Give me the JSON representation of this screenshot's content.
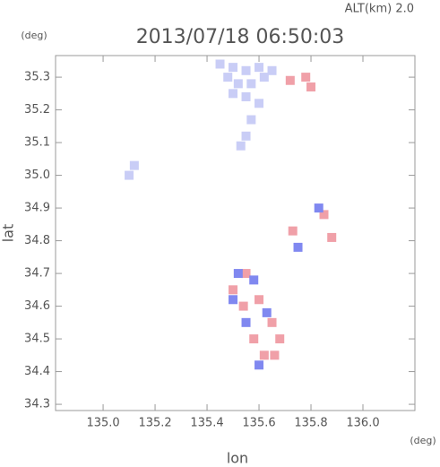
{
  "chart_data": {
    "type": "scatter",
    "title": "2013/07/18 06:50:03",
    "annotation": "ALT(km) 2.0",
    "y_unit": "(deg)",
    "x_unit": "(deg)",
    "xlabel": "lon",
    "ylabel": "lat",
    "xlim": [
      134.817,
      136.2
    ],
    "ylim": [
      34.281,
      35.366
    ],
    "xticks": [
      {
        "value": 135,
        "label": "135.0"
      },
      135.2,
      135.4,
      135.6,
      135.8,
      {
        "value": 136,
        "label": "136.0"
      }
    ],
    "yticks": [
      34.3,
      34.4,
      34.5,
      34.6,
      34.7,
      34.8,
      34.9,
      {
        "value": 35,
        "label": "35.0"
      },
      35.1,
      35.2,
      35.3
    ],
    "series": [
      {
        "color": "#c9cdf6",
        "x": [
          135.45,
          135.5,
          135.55,
          135.6,
          135.65,
          135.48,
          135.52,
          135.57,
          135.62,
          135.5,
          135.55,
          135.6,
          135.57,
          135.55,
          135.53,
          135.1,
          135.12
        ],
        "y": [
          35.34,
          35.33,
          35.32,
          35.33,
          35.32,
          35.3,
          35.28,
          35.28,
          35.3,
          35.25,
          35.24,
          35.22,
          35.17,
          35.12,
          35.09,
          35.0,
          35.03
        ]
      },
      {
        "color": "#f0a0a8",
        "x": [
          135.72,
          135.78,
          135.8,
          135.88,
          135.85,
          135.73,
          135.55,
          135.5,
          135.6,
          135.65,
          135.58,
          135.62,
          135.66,
          135.54,
          135.68
        ],
        "y": [
          35.29,
          35.3,
          35.27,
          34.81,
          34.88,
          34.83,
          34.7,
          34.65,
          34.62,
          34.55,
          34.5,
          34.45,
          34.45,
          34.6,
          34.5
        ]
      },
      {
        "color": "#8088f0",
        "x": [
          135.83,
          135.5,
          135.55,
          135.63,
          135.58,
          135.6,
          135.52,
          135.75
        ],
        "y": [
          34.9,
          34.62,
          34.55,
          34.58,
          34.68,
          34.42,
          34.7,
          34.78
        ]
      }
    ]
  }
}
